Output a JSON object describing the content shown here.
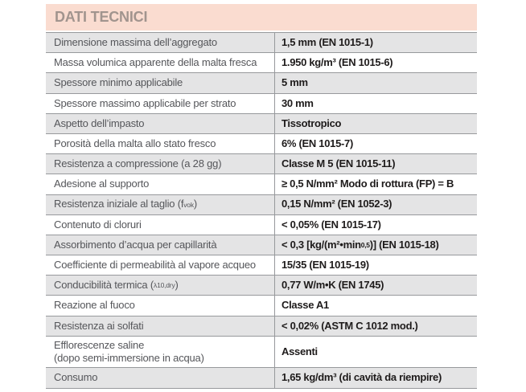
{
  "header": {
    "title": "DATI TECNICI"
  },
  "colors": {
    "header_bg": "#fadcd0",
    "header_fg": "#a1948e",
    "row_alt": "#e4e4e5",
    "line": "#97999c",
    "label_fg": "#55565a",
    "value_fg": "#1e1b1b"
  },
  "table": {
    "rows": [
      {
        "label": "Dimensione massima dell’aggregato",
        "value": "1,5 mm (EN 1015-1)"
      },
      {
        "label": "Massa volumica apparente della malta fresca",
        "value": "1.950 kg/m³ (EN 1015-6)"
      },
      {
        "label": "Spessore minimo applicabile",
        "value": "5 mm"
      },
      {
        "label": "Spessore massimo applicabile per strato",
        "value": "30 mm"
      },
      {
        "label": "Aspetto dell’impasto",
        "value": "Tissotropico"
      },
      {
        "label": "Porosità della malta allo stato fresco",
        "value": "6% (EN 1015-7)"
      },
      {
        "label": "Resistenza a compressione (a 28 gg)",
        "value": "Classe M 5 (EN 1015-11)"
      },
      {
        "label": "Adesione al supporto",
        "value": "≥ 0,5 N/mm² Modo di rottura (FP) = B"
      },
      {
        "label": "Resistenza iniziale al taglio (f<sub>vok</sub>)",
        "value": "0,15 N/mm² (EN 1052-3)"
      },
      {
        "label": "Contenuto di cloruri",
        "value": "< 0,05% (EN 1015-17)"
      },
      {
        "label": "Assorbimento d’acqua per capillarità",
        "value": "< 0,3 [kg/(m²•min<sup>0,5</sup>)] (EN 1015-18)"
      },
      {
        "label": "Coefficiente di permeabilità al vapore acqueo",
        "value": "15/35 (EN 1015-19)"
      },
      {
        "label": "Conducibilità termica (<sub>λ10,dry</sub>)",
        "value": "0,77 W/m•K (EN 1745)"
      },
      {
        "label": "Reazione al fuoco",
        "value": "Classe A1"
      },
      {
        "label": "Resistenza ai solfati",
        "value": "< 0,02% (ASTM C 1012 mod.)"
      },
      {
        "label": "Efflorescenze saline<br>(dopo semi-immersione in acqua)",
        "value": "Assenti"
      },
      {
        "label": "Consumo",
        "value": "1,65 kg/dm³ (di cavità da riempire)"
      }
    ]
  }
}
